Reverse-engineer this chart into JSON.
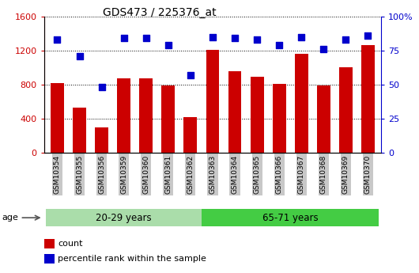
{
  "title": "GDS473 / 225376_at",
  "samples": [
    "GSM10354",
    "GSM10355",
    "GSM10356",
    "GSM10359",
    "GSM10360",
    "GSM10361",
    "GSM10362",
    "GSM10363",
    "GSM10364",
    "GSM10365",
    "GSM10366",
    "GSM10367",
    "GSM10368",
    "GSM10369",
    "GSM10370"
  ],
  "counts": [
    820,
    530,
    300,
    870,
    870,
    790,
    420,
    1210,
    960,
    890,
    810,
    1160,
    790,
    1000,
    1260
  ],
  "percentile_ranks": [
    83,
    71,
    48,
    84,
    84,
    79,
    57,
    85,
    84,
    83,
    79,
    85,
    76,
    83,
    86
  ],
  "group1_label": "20-29 years",
  "group1_count": 7,
  "group2_label": "65-71 years",
  "group2_count": 8,
  "age_label": "age",
  "ylim_left": [
    0,
    1600
  ],
  "ylim_right": [
    0,
    100
  ],
  "yticks_left": [
    0,
    400,
    800,
    1200,
    1600
  ],
  "ytick_labels_left": [
    "0",
    "400",
    "800",
    "1200",
    "1600"
  ],
  "yticks_right": [
    0,
    25,
    50,
    75,
    100
  ],
  "ytick_labels_right": [
    "0",
    "25",
    "50",
    "75",
    "100%"
  ],
  "bar_color": "#CC0000",
  "dot_color": "#0000CC",
  "group1_bg": "#AADDAA",
  "group2_bg": "#44CC44",
  "tick_bg": "#C8C8C8",
  "legend_count_label": "count",
  "legend_pct_label": "percentile rank within the sample",
  "grid_color": "#000000",
  "background_color": "#ffffff"
}
